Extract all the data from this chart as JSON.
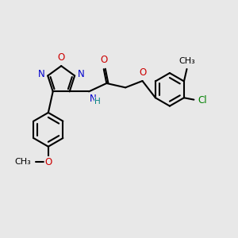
{
  "bg_color": "#e8e8e8",
  "bond_color": "#000000",
  "bond_width": 1.5,
  "atom_colors": {
    "N": "#0000cc",
    "O": "#cc0000",
    "Cl": "#008000",
    "C": "#000000",
    "H": "#008080"
  },
  "font_size": 8.5,
  "fig_size": [
    3.0,
    3.0
  ],
  "dpi": 100
}
